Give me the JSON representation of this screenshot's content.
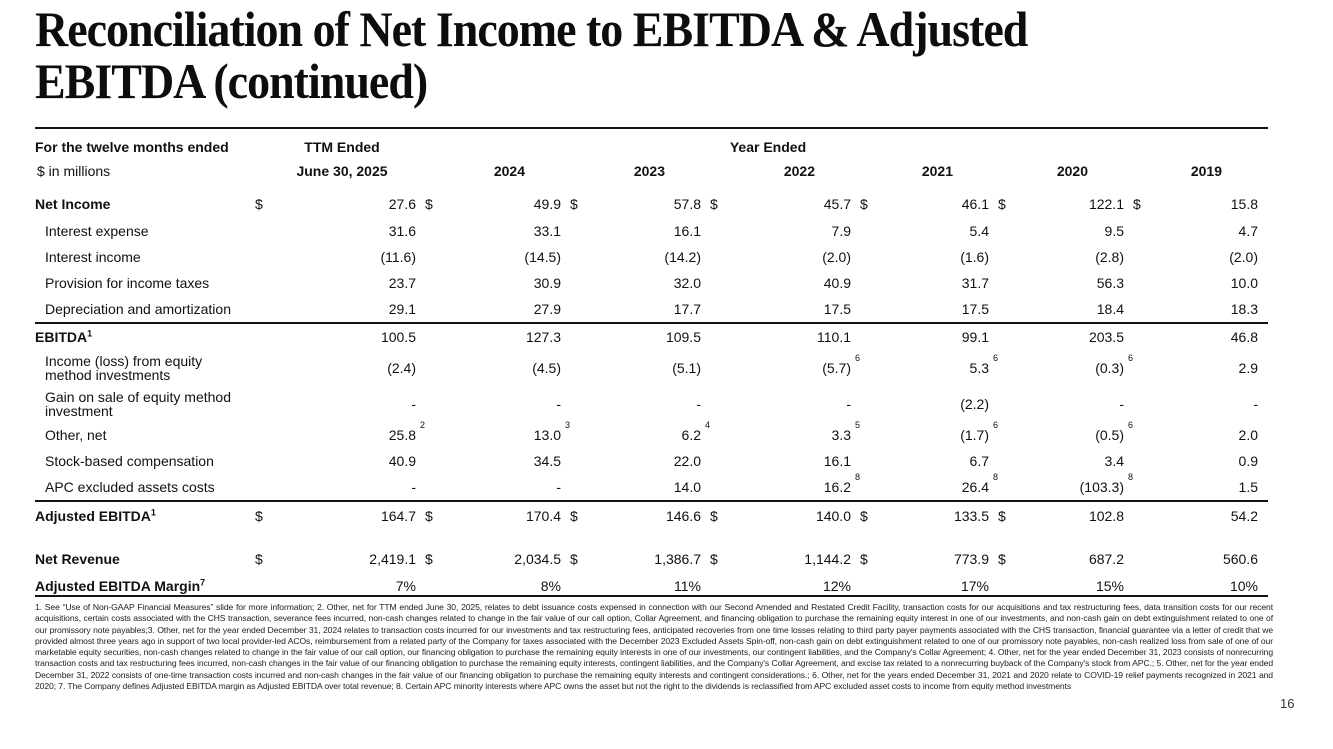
{
  "page": {
    "title_line1": "Reconciliation of Net Income to EBITDA & Adjusted",
    "title_line2": "EBITDA (continued)",
    "page_number": "16"
  },
  "table": {
    "header": {
      "col_label_line1": "For the twelve months ended",
      "col_label_line2": "$ in millions",
      "ttm_line1": "TTM Ended",
      "ttm_line2": "June 30, 2025",
      "year_ended": "Year Ended",
      "years": [
        "2024",
        "2023",
        "2022",
        "2021",
        "2020",
        "2019"
      ]
    },
    "rows": [
      {
        "label": "Net Income",
        "sup": "",
        "bold": true,
        "indent": false,
        "first": true,
        "cells": [
          {
            "d": "$",
            "v": "27.6",
            "s": ""
          },
          {
            "d": "$",
            "v": "49.9",
            "s": ""
          },
          {
            "d": "$",
            "v": "57.8",
            "s": ""
          },
          {
            "d": "$",
            "v": "45.7",
            "s": ""
          },
          {
            "d": "$",
            "v": "46.1",
            "s": ""
          },
          {
            "d": "$",
            "v": "122.1",
            "s": ""
          },
          {
            "d": "$",
            "v": "15.8",
            "s": ""
          }
        ]
      },
      {
        "label": "Interest expense",
        "sup": "",
        "bold": false,
        "indent": true,
        "cells": [
          {
            "d": "",
            "v": "31.6",
            "s": ""
          },
          {
            "d": "",
            "v": "33.1",
            "s": ""
          },
          {
            "d": "",
            "v": "16.1",
            "s": ""
          },
          {
            "d": "",
            "v": "7.9",
            "s": ""
          },
          {
            "d": "",
            "v": "5.4",
            "s": ""
          },
          {
            "d": "",
            "v": "9.5",
            "s": ""
          },
          {
            "d": "",
            "v": "4.7",
            "s": ""
          }
        ]
      },
      {
        "label": "Interest income",
        "sup": "",
        "bold": false,
        "indent": true,
        "cells": [
          {
            "d": "",
            "v": "(11.6)",
            "s": ""
          },
          {
            "d": "",
            "v": "(14.5)",
            "s": ""
          },
          {
            "d": "",
            "v": "(14.2)",
            "s": ""
          },
          {
            "d": "",
            "v": "(2.0)",
            "s": ""
          },
          {
            "d": "",
            "v": "(1.6)",
            "s": ""
          },
          {
            "d": "",
            "v": "(2.8)",
            "s": ""
          },
          {
            "d": "",
            "v": "(2.0)",
            "s": ""
          }
        ]
      },
      {
        "label": "Provision for income taxes",
        "sup": "",
        "bold": false,
        "indent": true,
        "cells": [
          {
            "d": "",
            "v": "23.7",
            "s": ""
          },
          {
            "d": "",
            "v": "30.9",
            "s": ""
          },
          {
            "d": "",
            "v": "32.0",
            "s": ""
          },
          {
            "d": "",
            "v": "40.9",
            "s": ""
          },
          {
            "d": "",
            "v": "31.7",
            "s": ""
          },
          {
            "d": "",
            "v": "56.3",
            "s": ""
          },
          {
            "d": "",
            "v": "10.0",
            "s": ""
          }
        ]
      },
      {
        "label": "Depreciation and amortization",
        "sup": "",
        "bold": false,
        "indent": true,
        "cells": [
          {
            "d": "",
            "v": "29.1",
            "s": ""
          },
          {
            "d": "",
            "v": "27.9",
            "s": ""
          },
          {
            "d": "",
            "v": "17.7",
            "s": ""
          },
          {
            "d": "",
            "v": "17.5",
            "s": ""
          },
          {
            "d": "",
            "v": "17.5",
            "s": ""
          },
          {
            "d": "",
            "v": "18.4",
            "s": ""
          },
          {
            "d": "",
            "v": "18.3",
            "s": ""
          }
        ]
      },
      {
        "label": "EBITDA",
        "sup": "1",
        "bold": true,
        "indent": false,
        "rule_above": "thin",
        "cells": [
          {
            "d": "",
            "v": "100.5",
            "s": ""
          },
          {
            "d": "",
            "v": "127.3",
            "s": ""
          },
          {
            "d": "",
            "v": "109.5",
            "s": ""
          },
          {
            "d": "",
            "v": "110.1",
            "s": ""
          },
          {
            "d": "",
            "v": "99.1",
            "s": ""
          },
          {
            "d": "",
            "v": "203.5",
            "s": ""
          },
          {
            "d": "",
            "v": "46.8",
            "s": ""
          }
        ]
      },
      {
        "label": "Income (loss) from equity\nmethod investments",
        "sup": "",
        "bold": false,
        "indent": true,
        "tall": true,
        "cells": [
          {
            "d": "",
            "v": "(2.4)",
            "s": ""
          },
          {
            "d": "",
            "v": "(4.5)",
            "s": ""
          },
          {
            "d": "",
            "v": "(5.1)",
            "s": ""
          },
          {
            "d": "",
            "v": "(5.7)",
            "s": "6"
          },
          {
            "d": "",
            "v": "5.3",
            "s": "6"
          },
          {
            "d": "",
            "v": "(0.3)",
            "s": "6"
          },
          {
            "d": "",
            "v": "2.9",
            "s": ""
          }
        ]
      },
      {
        "label": "Gain on sale of equity method\ninvestment",
        "sup": "",
        "bold": false,
        "indent": true,
        "tall": true,
        "cells": [
          {
            "d": "",
            "v": "-",
            "s": ""
          },
          {
            "d": "",
            "v": "-",
            "s": ""
          },
          {
            "d": "",
            "v": "-",
            "s": ""
          },
          {
            "d": "",
            "v": "-",
            "s": ""
          },
          {
            "d": "",
            "v": "(2.2)",
            "s": ""
          },
          {
            "d": "",
            "v": "-",
            "s": ""
          },
          {
            "d": "",
            "v": "-",
            "s": ""
          }
        ]
      },
      {
        "label": "Other, net",
        "sup": "",
        "bold": false,
        "indent": true,
        "cells": [
          {
            "d": "",
            "v": "25.8",
            "s": "2"
          },
          {
            "d": "",
            "v": "13.0",
            "s": "3"
          },
          {
            "d": "",
            "v": "6.2",
            "s": "4"
          },
          {
            "d": "",
            "v": "3.3",
            "s": "5"
          },
          {
            "d": "",
            "v": "(1.7)",
            "s": "6"
          },
          {
            "d": "",
            "v": "(0.5)",
            "s": "6"
          },
          {
            "d": "",
            "v": "2.0",
            "s": ""
          }
        ]
      },
      {
        "label": "Stock-based compensation",
        "sup": "",
        "bold": false,
        "indent": true,
        "cells": [
          {
            "d": "",
            "v": "40.9",
            "s": ""
          },
          {
            "d": "",
            "v": "34.5",
            "s": ""
          },
          {
            "d": "",
            "v": "22.0",
            "s": ""
          },
          {
            "d": "",
            "v": "16.1",
            "s": ""
          },
          {
            "d": "",
            "v": "6.7",
            "s": ""
          },
          {
            "d": "",
            "v": "3.4",
            "s": ""
          },
          {
            "d": "",
            "v": "0.9",
            "s": ""
          }
        ]
      },
      {
        "label": "APC excluded assets costs",
        "sup": "",
        "bold": false,
        "indent": true,
        "cells": [
          {
            "d": "",
            "v": "-",
            "s": ""
          },
          {
            "d": "",
            "v": "-",
            "s": ""
          },
          {
            "d": "",
            "v": "14.0",
            "s": ""
          },
          {
            "d": "",
            "v": "16.2",
            "s": "8"
          },
          {
            "d": "",
            "v": "26.4",
            "s": "8"
          },
          {
            "d": "",
            "v": "(103.3)",
            "s": "8"
          },
          {
            "d": "",
            "v": "1.5",
            "s": ""
          }
        ]
      },
      {
        "label": "Adjusted EBITDA",
        "sup": "1",
        "bold": true,
        "indent": false,
        "rule_above": "thick",
        "big": true,
        "cells": [
          {
            "d": "$",
            "v": "164.7",
            "s": ""
          },
          {
            "d": "$",
            "v": "170.4",
            "s": ""
          },
          {
            "d": "$",
            "v": "146.6",
            "s": ""
          },
          {
            "d": "$",
            "v": "140.0",
            "s": ""
          },
          {
            "d": "$",
            "v": "133.5",
            "s": ""
          },
          {
            "d": "$",
            "v": "102.8",
            "s": ""
          },
          {
            "d": "",
            "v": "54.2",
            "s": ""
          }
        ]
      },
      {
        "label": "Net Revenue",
        "sup": "",
        "bold": true,
        "indent": false,
        "spacer_before": 16,
        "cells": [
          {
            "d": "$",
            "v": "2,419.1",
            "s": ""
          },
          {
            "d": "$",
            "v": "2,034.5",
            "s": ""
          },
          {
            "d": "$",
            "v": "1,386.7",
            "s": ""
          },
          {
            "d": "$",
            "v": "1,144.2",
            "s": ""
          },
          {
            "d": "$",
            "v": "773.9",
            "s": ""
          },
          {
            "d": "$",
            "v": "687.2",
            "s": ""
          },
          {
            "d": "",
            "v": "560.6",
            "s": ""
          }
        ]
      },
      {
        "label": "Adjusted EBITDA Margin",
        "sup": "7",
        "bold": true,
        "indent": false,
        "big": true,
        "cells": [
          {
            "d": "",
            "v": "7%",
            "s": ""
          },
          {
            "d": "",
            "v": "8%",
            "s": ""
          },
          {
            "d": "",
            "v": "11%",
            "s": ""
          },
          {
            "d": "",
            "v": "12%",
            "s": ""
          },
          {
            "d": "",
            "v": "17%",
            "s": ""
          },
          {
            "d": "",
            "v": "15%",
            "s": ""
          },
          {
            "d": "",
            "v": "10%",
            "s": ""
          }
        ]
      }
    ]
  },
  "footnotes": "1. See “Use of Non-GAAP Financial Measures” slide for more information; 2. Other, net for TTM ended June 30, 2025, relates to debt issuance costs expensed in connection with our Second Amended and Restated Credit Facility, transaction costs for our acquisitions and tax restructuring fees, data transition costs for our recent acquisitions, certain costs associated with the CHS transaction, severance fees incurred, non-cash changes related to change in the fair value of our call option, Collar Agreement, and financing obligation to purchase the remaining equity interest in one of our investments, and non-cash gain on debt extinguishment related to one of our promissory note payables;3. Other, net for the year ended December 31, 2024 relates to transaction costs incurred for our investments and tax restructuring fees, anticipated recoveries from one time losses relating to third party payer payments associated with the CHS transaction, financial guarantee via a letter of credit that we provided almost three years ago in support of two local provider-led ACOs, reimbursement from a related party of the Company for taxes associated with the December 2023 Excluded Assets Spin-off, non-cash gain on debt extinguishment related to one of our promissory note payables, non-cash realized loss from sale of one of our marketable equity securities, non-cash changes related to change in the fair value of our call option, our financing obligation to purchase the remaining equity interests in one of our investments, our contingent liabilities, and the Company's Collar Agreement; 4. Other, net for the year ended December 31, 2023 consists of nonrecurring transaction costs and tax restructuring fees incurred, non-cash changes in the fair value of our financing obligation to purchase the remaining equity interests, contingent liabilities, and the Company's Collar Agreement, and excise tax related to a nonrecurring buyback of the Company's stock from APC.; 5. Other, net for the year ended December 31, 2022 consists of one-time transaction costs incurred and non-cash changes in the fair value of our financing obligation to purchase the remaining equity interests and contingent considerations.; 6. Other, net for the years ended December 31, 2021 and 2020 relate to COVID-19 relief payments recognized in 2021 and 2020; 7. The Company defines Adjusted EBITDA margin as Adjusted EBITDA over total revenue; 8. Certain APC minority interests where APC owns the asset but not the right to the dividends is reclassified from APC excluded asset costs to income from equity method investments",
  "colors": {
    "text": "#111111",
    "rule": "#141414",
    "background": "#ffffff"
  }
}
